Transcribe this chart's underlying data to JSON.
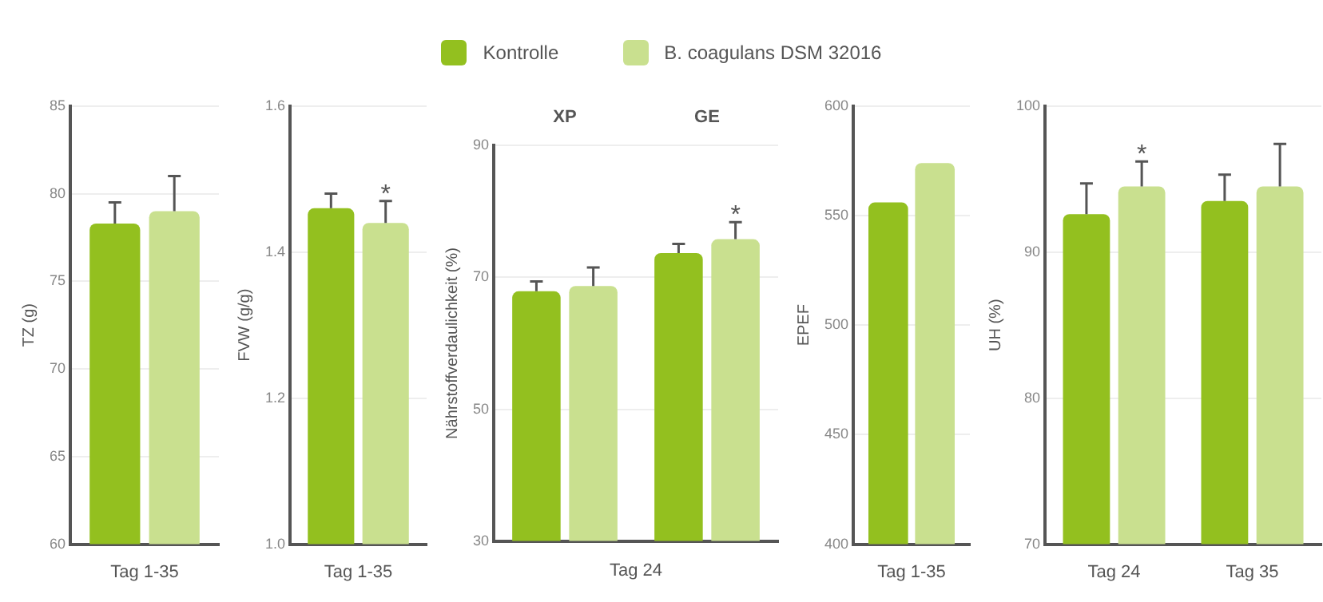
{
  "chart_data": [
    {
      "type": "bar",
      "ylabel": "TZ (g)",
      "categories": [
        "Tag 1-35"
      ],
      "ylim": [
        60,
        85
      ],
      "yticks": [
        60,
        65,
        70,
        75,
        80,
        85
      ],
      "grid": "y",
      "series": [
        {
          "color": "#93c01f",
          "values": [
            78.3
          ],
          "errors": [
            [
              78.3,
              79.5
            ]
          ]
        },
        {
          "color": "#c9e08f",
          "values": [
            79.0
          ],
          "errors": [
            [
              79.0,
              81.0
            ]
          ]
        }
      ]
    },
    {
      "type": "bar",
      "ylabel": "FVW (g/g)",
      "categories": [
        "Tag 1-35"
      ],
      "ylim": [
        1.0,
        1.6
      ],
      "yticks": [
        {
          "value": 1.0,
          "label": "1.0"
        },
        1.2,
        1.4,
        1.6
      ],
      "grid": "y",
      "annotations": [
        {
          "text": "*",
          "x": "Tag 1-35",
          "y": 1.44
        }
      ],
      "series": [
        {
          "color": "#93c01f",
          "values": [
            1.46
          ],
          "errors": [
            [
              1.46,
              1.48
            ]
          ]
        },
        {
          "color": "#c9e08f",
          "values": [
            1.44
          ],
          "errors": [
            [
              1.44,
              1.47
            ]
          ]
        }
      ]
    },
    {
      "type": "bar",
      "ylabel": "Nährstoffverdaulichkeit (%)",
      "xlabel": "Tag 24",
      "categories": [
        "XP",
        "GE"
      ],
      "ylim": [
        30,
        90
      ],
      "yticks": [
        30,
        50,
        70,
        90
      ],
      "grid": "y",
      "legend": "top",
      "annotations": [
        {
          "text": "*",
          "x": "GE",
          "y": 75.8
        }
      ],
      "series": [
        {
          "name": "Kontrolle",
          "color": "#93c01f",
          "values": [
            67.9,
            73.7
          ],
          "errors": [
            [
              67.9,
              69.4
            ],
            [
              73.7,
              75.1
            ]
          ]
        },
        {
          "name": "B. coagulans DSM 32016",
          "color": "#c9e08f",
          "values": [
            68.7,
            75.8
          ],
          "errors": [
            [
              68.7,
              71.5
            ],
            [
              75.8,
              78.4
            ]
          ]
        }
      ]
    },
    {
      "type": "bar",
      "ylabel": "EPEF",
      "categories": [
        "Tag 1-35"
      ],
      "ylim": [
        400,
        600
      ],
      "yticks": [
        400,
        450,
        500,
        550,
        600
      ],
      "grid": "y",
      "series": [
        {
          "color": "#93c01f",
          "values": [
            556
          ]
        },
        {
          "color": "#c9e08f",
          "values": [
            574
          ]
        }
      ]
    },
    {
      "type": "bar",
      "ylabel": "UH (%)",
      "categories": [
        "Tag 24",
        "Tag 35"
      ],
      "ylim": [
        70,
        100
      ],
      "yticks": [
        70,
        80,
        90,
        100
      ],
      "grid": "y",
      "annotations": [
        {
          "text": "*",
          "x": "Tag 24",
          "y": 94.5
        }
      ],
      "series": [
        {
          "color": "#93c01f",
          "values": [
            92.6,
            93.5
          ],
          "errors": [
            [
              92.6,
              94.7
            ],
            [
              93.5,
              95.3
            ]
          ]
        },
        {
          "color": "#c9e08f",
          "values": [
            94.5,
            94.5
          ],
          "errors": [
            [
              94.5,
              96.2
            ],
            [
              94.5,
              97.4
            ]
          ]
        }
      ]
    }
  ]
}
